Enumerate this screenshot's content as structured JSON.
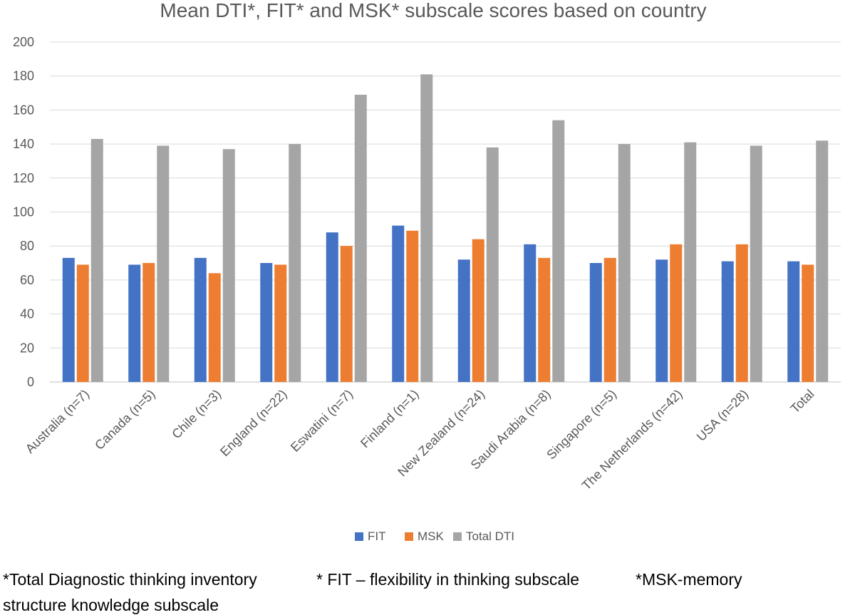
{
  "chart_data": {
    "type": "bar",
    "title": "Mean DTI*, FIT* and MSK* subscale scores based on country",
    "xlabel": "",
    "ylabel": "",
    "ylim": [
      0,
      200
    ],
    "yticks": [
      "0",
      "20",
      "40",
      "60",
      "80",
      "100",
      "120",
      "140",
      "160",
      "180",
      "200"
    ],
    "grid": true,
    "legend_position": "bottom",
    "categories": [
      "Australia (n=7)",
      "Canada (n=5)",
      "Chile (n=3)",
      "England (n=22)",
      "Eswatini (n=7)",
      "Finland (n=1)",
      "New Zealand (n=24)",
      "Saudi Arabia (n=8)",
      "Singapore (n=5)",
      "The Netherlands (n=42)",
      "USA (n=28)",
      "Total"
    ],
    "series": [
      {
        "name": "FIT",
        "color": "#4472c4",
        "values": [
          73,
          69,
          73,
          70,
          88,
          92,
          72,
          81,
          70,
          72,
          71,
          71
        ]
      },
      {
        "name": "MSK",
        "color": "#ed7d31",
        "values": [
          69,
          70,
          64,
          69,
          80,
          89,
          84,
          73,
          73,
          81,
          81,
          69
        ]
      },
      {
        "name": "Total DTI",
        "color": "#a5a5a5",
        "values": [
          143,
          139,
          137,
          140,
          169,
          181,
          138,
          154,
          140,
          141,
          139,
          142
        ]
      }
    ]
  },
  "footnotes": {
    "line1_a": "*Total Diagnostic thinking inventory",
    "line1_b": "* FIT – flexibility in thinking subscale",
    "line1_c": "*MSK-memory",
    "line2": "structure knowledge subscale"
  }
}
